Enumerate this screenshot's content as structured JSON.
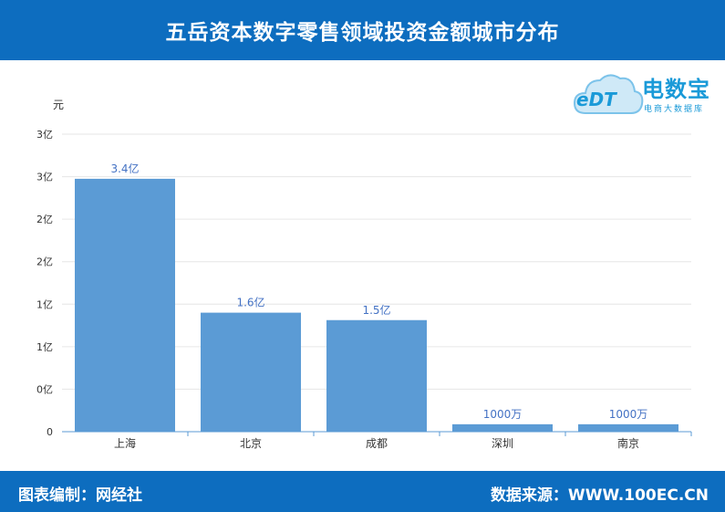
{
  "header": {
    "title": "五岳资本数字零售领域投资金额城市分布"
  },
  "footer": {
    "left": "图表编制：网经社",
    "right": "数据来源：WWW.100EC.CN"
  },
  "logo": {
    "brand": "电数宝",
    "subtitle": "电商大数据库",
    "mark": "eDT",
    "icon": "cloud-icon"
  },
  "colors": {
    "bar": "#5b9bd5",
    "header": "#0d6dbf",
    "label": "#4472c4"
  },
  "chart_data": {
    "type": "bar",
    "categories": [
      "上海",
      "北京",
      "成都",
      "深圳",
      "南京"
    ],
    "values": [
      340000000,
      160000000,
      150000000,
      10000000,
      10000000
    ],
    "data_labels": [
      "3.4亿",
      "1.6亿",
      "1.5亿",
      "1000万",
      "1000万"
    ],
    "y_unit": "元",
    "y_ticks": [
      "0",
      "0亿",
      "1亿",
      "1亿",
      "2亿",
      "2亿",
      "3亿",
      "3亿"
    ],
    "ylim": [
      0,
      400000000
    ],
    "grid": true
  }
}
